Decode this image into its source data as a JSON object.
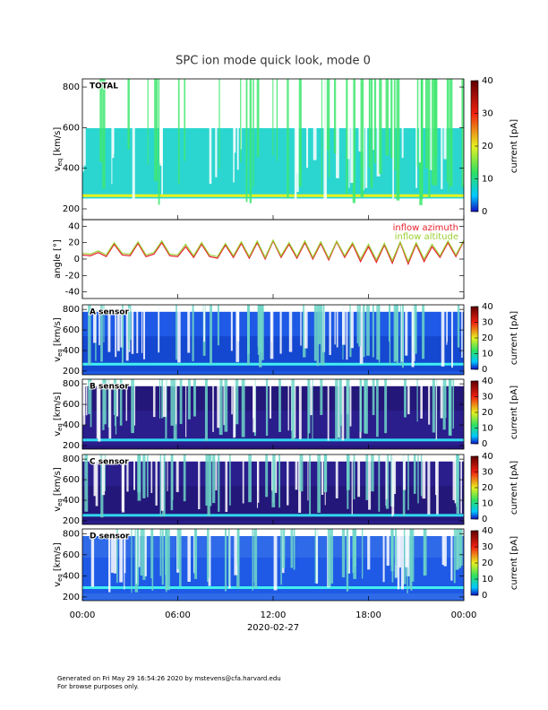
{
  "title": "SPC ion mode quick look, mode 0",
  "chart_data": [
    {
      "type": "spectrogram",
      "label": "TOTAL",
      "ylabel": "v",
      "ylabel_sub": "eq",
      "ylabel_unit": "[km/s]",
      "ylim": [
        147,
        840
      ],
      "yticks": [
        200,
        400,
        600,
        800
      ],
      "colorbar": {
        "label": "current [pA]",
        "lim": [
          0,
          40
        ],
        "ticks": [
          0,
          10,
          20,
          30,
          40
        ]
      }
    },
    {
      "type": "line",
      "ylabel": "angle [°]",
      "ylim": [
        -48,
        48
      ],
      "yticks": [
        -40,
        -20,
        0,
        20,
        40
      ],
      "x": [
        0,
        0.5,
        1,
        1.5,
        2,
        2.5,
        3,
        3.5,
        4,
        4.5,
        5,
        5.5,
        6,
        6.5,
        7,
        7.5,
        8,
        8.5,
        9,
        9.5,
        10,
        10.5,
        11,
        11.5,
        12,
        12.5,
        13,
        13.5,
        14,
        14.5,
        15,
        15.5,
        16,
        16.5,
        17,
        17.5,
        18,
        18.5,
        19,
        19.5,
        20,
        20.5,
        21,
        21.5,
        22,
        22.5,
        23,
        23.5,
        24
      ],
      "series": [
        {
          "name": "inflow azimuth",
          "color": "#e8202a",
          "values": [
            5,
            4,
            8,
            3,
            18,
            5,
            4,
            19,
            3,
            6,
            20,
            4,
            3,
            15,
            2,
            18,
            3,
            1,
            17,
            2,
            19,
            1,
            20,
            0,
            22,
            2,
            18,
            1,
            20,
            0,
            19,
            -1,
            21,
            2,
            18,
            -3,
            15,
            -4,
            17,
            -5,
            20,
            -6,
            18,
            -3,
            15,
            2,
            20,
            3,
            22
          ]
        },
        {
          "name": "inflow altitude",
          "color": "#9acd32",
          "values": [
            7,
            6,
            10,
            5,
            20,
            7,
            6,
            21,
            5,
            8,
            22,
            6,
            5,
            18,
            4,
            20,
            5,
            3,
            19,
            4,
            21,
            3,
            22,
            2,
            23,
            4,
            20,
            3,
            22,
            2,
            21,
            1,
            22,
            4,
            20,
            0,
            18,
            -1,
            19,
            -2,
            21,
            -3,
            20,
            0,
            18,
            4,
            22,
            5,
            23
          ]
        }
      ]
    },
    {
      "type": "spectrogram",
      "label": "A sensor",
      "ylabel": "v",
      "ylabel_sub": "eq",
      "ylabel_unit": "[km/s]",
      "ylim": [
        165,
        845
      ],
      "yticks": [
        200,
        400,
        600,
        800
      ],
      "colorbar": {
        "label": "current [pA]",
        "lim": [
          0,
          40
        ],
        "ticks": [
          0,
          10,
          20,
          30,
          40
        ]
      }
    },
    {
      "type": "spectrogram",
      "label": "B sensor",
      "ylabel": "v",
      "ylabel_sub": "eq",
      "ylabel_unit": "[km/s]",
      "ylim": [
        165,
        845
      ],
      "yticks": [
        200,
        400,
        600,
        800
      ],
      "colorbar": {
        "label": "current [pA]",
        "lim": [
          0,
          40
        ],
        "ticks": [
          0,
          10,
          20,
          30,
          40
        ]
      }
    },
    {
      "type": "spectrogram",
      "label": "C sensor",
      "ylabel": "v",
      "ylabel_sub": "eq",
      "ylabel_unit": "[km/s]",
      "ylim": [
        165,
        845
      ],
      "yticks": [
        200,
        400,
        600,
        800
      ],
      "colorbar": {
        "label": "current [pA]",
        "lim": [
          0,
          40
        ],
        "ticks": [
          0,
          10,
          20,
          30,
          40
        ]
      }
    },
    {
      "type": "spectrogram",
      "label": "D sensor",
      "ylabel": "v",
      "ylabel_sub": "eq",
      "ylabel_unit": "[km/s]",
      "ylim": [
        165,
        845
      ],
      "yticks": [
        200,
        400,
        600,
        800
      ],
      "colorbar": {
        "label": "current [pA]",
        "lim": [
          0,
          40
        ],
        "ticks": [
          0,
          10,
          20,
          30,
          40
        ]
      },
      "xlabel": "2020-02-27",
      "xlim": [
        0,
        24
      ],
      "xticks": [
        {
          "value": 0,
          "label": "00:00"
        },
        {
          "value": 6,
          "label": "06:00"
        },
        {
          "value": 12,
          "label": "12:00"
        },
        {
          "value": 18,
          "label": "18:00"
        },
        {
          "value": 24,
          "label": "00:00"
        }
      ]
    }
  ],
  "footer": [
    "Generated on Fri May 29 16:54:26 2020 by mstevens@cfa.harvard.edu",
    "For browse purposes only."
  ]
}
